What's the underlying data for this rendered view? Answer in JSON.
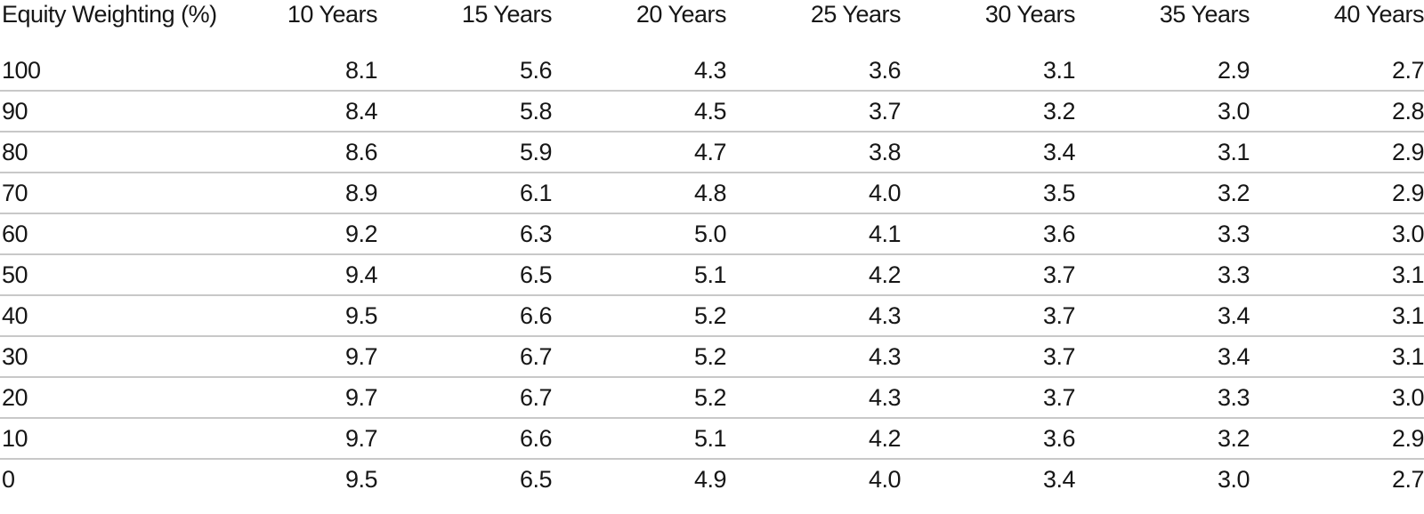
{
  "table": {
    "header": {
      "row_label": "Equity Weighting (%)",
      "columns": [
        "10 Years",
        "15 Years",
        "20 Years",
        "25 Years",
        "30 Years",
        "35 Years",
        "40 Years"
      ]
    },
    "rows": [
      {
        "weighting": "100",
        "values": [
          "8.1",
          "5.6",
          "4.3",
          "3.6",
          "3.1",
          "2.9",
          "2.7"
        ]
      },
      {
        "weighting": "90",
        "values": [
          "8.4",
          "5.8",
          "4.5",
          "3.7",
          "3.2",
          "3.0",
          "2.8"
        ]
      },
      {
        "weighting": "80",
        "values": [
          "8.6",
          "5.9",
          "4.7",
          "3.8",
          "3.4",
          "3.1",
          "2.9"
        ]
      },
      {
        "weighting": "70",
        "values": [
          "8.9",
          "6.1",
          "4.8",
          "4.0",
          "3.5",
          "3.2",
          "2.9"
        ]
      },
      {
        "weighting": "60",
        "values": [
          "9.2",
          "6.3",
          "5.0",
          "4.1",
          "3.6",
          "3.3",
          "3.0"
        ]
      },
      {
        "weighting": "50",
        "values": [
          "9.4",
          "6.5",
          "5.1",
          "4.2",
          "3.7",
          "3.3",
          "3.1"
        ]
      },
      {
        "weighting": "40",
        "values": [
          "9.5",
          "6.6",
          "5.2",
          "4.3",
          "3.7",
          "3.4",
          "3.1"
        ]
      },
      {
        "weighting": "30",
        "values": [
          "9.7",
          "6.7",
          "5.2",
          "4.3",
          "3.7",
          "3.4",
          "3.1"
        ]
      },
      {
        "weighting": "20",
        "values": [
          "9.7",
          "6.7",
          "5.2",
          "4.3",
          "3.7",
          "3.3",
          "3.0"
        ]
      },
      {
        "weighting": "10",
        "values": [
          "9.7",
          "6.6",
          "5.1",
          "4.2",
          "3.6",
          "3.2",
          "2.9"
        ]
      },
      {
        "weighting": "0",
        "values": [
          "9.5",
          "6.5",
          "4.9",
          "4.0",
          "3.4",
          "3.0",
          "2.7"
        ]
      }
    ]
  },
  "chart_data": {
    "type": "table",
    "row_header": "Equity Weighting (%)",
    "columns": [
      "10 Years",
      "15 Years",
      "20 Years",
      "25 Years",
      "30 Years",
      "35 Years",
      "40 Years"
    ],
    "equity_weightings": [
      100,
      90,
      80,
      70,
      60,
      50,
      40,
      30,
      20,
      10,
      0
    ],
    "series": [
      {
        "name": "10 Years",
        "values": [
          8.1,
          8.4,
          8.6,
          8.9,
          9.2,
          9.4,
          9.5,
          9.7,
          9.7,
          9.7,
          9.5
        ]
      },
      {
        "name": "15 Years",
        "values": [
          5.6,
          5.8,
          5.9,
          6.1,
          6.3,
          6.5,
          6.6,
          6.7,
          6.7,
          6.6,
          6.5
        ]
      },
      {
        "name": "20 Years",
        "values": [
          4.3,
          4.5,
          4.7,
          4.8,
          5.0,
          5.1,
          5.2,
          5.2,
          5.2,
          5.1,
          4.9
        ]
      },
      {
        "name": "25 Years",
        "values": [
          3.6,
          3.7,
          3.8,
          4.0,
          4.1,
          4.2,
          4.3,
          4.3,
          4.3,
          4.2,
          4.0
        ]
      },
      {
        "name": "30 Years",
        "values": [
          3.1,
          3.2,
          3.4,
          3.5,
          3.6,
          3.7,
          3.7,
          3.7,
          3.7,
          3.6,
          3.4
        ]
      },
      {
        "name": "35 Years",
        "values": [
          2.9,
          3.0,
          3.1,
          3.2,
          3.3,
          3.3,
          3.4,
          3.4,
          3.3,
          3.2,
          3.0
        ]
      },
      {
        "name": "40 Years",
        "values": [
          2.7,
          2.8,
          2.9,
          2.9,
          3.0,
          3.1,
          3.1,
          3.1,
          3.0,
          2.9,
          2.7
        ]
      }
    ],
    "layout": {
      "grid": "horizontal-rules-only",
      "header_rule": false,
      "bottom_rule": false
    },
    "colors": {
      "text": "#161616",
      "rule": "#c8c8c8",
      "background": "#ffffff"
    }
  }
}
